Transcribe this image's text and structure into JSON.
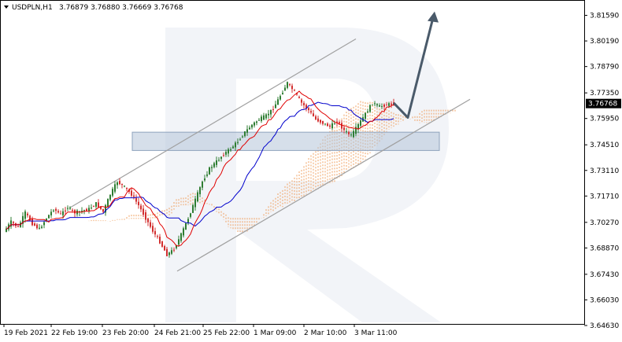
{
  "header": {
    "symbol": "USDPLN,H1",
    "ohlc": "3.76879 3.76880 3.76669 3.76768"
  },
  "colors": {
    "bull": "#2e7d32",
    "bear": "#d32f2f",
    "tenkan": "#e00000",
    "kijun": "#0000cc",
    "cloud": "#f0a060",
    "channel": "#a0a0a0",
    "zone": "#b4c4d8",
    "arrow": "#4a5a6a",
    "price_label_bg": "#000000"
  },
  "chart_data": {
    "type": "candlestick",
    "ylim": [
      3.6463,
      3.823
    ],
    "y_ticks": [
      "3.81590",
      "3.80190",
      "3.78790",
      "3.77350",
      "3.75950",
      "3.74510",
      "3.73110",
      "3.71710",
      "3.70270",
      "3.68870",
      "3.67430",
      "3.66030",
      "3.64630"
    ],
    "x_ticks": [
      "19 Feb 2021",
      "22 Feb 19:00",
      "23 Feb 20:00",
      "24 Feb 21:00",
      "25 Feb 22:00",
      "1 Mar 09:00",
      "2 Mar 10:00",
      "3 Mar 11:00"
    ],
    "current_price": "3.76768",
    "price_path": [
      3.6975,
      3.703,
      3.7,
      3.708,
      3.702,
      3.699,
      3.705,
      3.71,
      3.707,
      3.711,
      3.708,
      3.709,
      3.71,
      3.713,
      3.7085,
      3.718,
      3.725,
      3.722,
      3.718,
      3.712,
      3.705,
      3.698,
      3.692,
      3.685,
      3.688,
      3.696,
      3.705,
      3.715,
      3.725,
      3.732,
      3.736,
      3.74,
      3.743,
      3.747,
      3.752,
      3.756,
      3.759,
      3.761,
      3.765,
      3.772,
      3.779,
      3.774,
      3.768,
      3.764,
      3.759,
      3.757,
      3.755,
      3.758,
      3.753,
      3.75,
      3.756,
      3.762,
      3.768,
      3.766,
      3.767,
      3.76768
    ],
    "channel_upper": [
      [
        3.711,
        3.717
      ],
      [
        3.803,
        3.803
      ]
    ],
    "channel_lower": [
      [
        3.676,
        3.68
      ],
      [
        3.751,
        3.77
      ]
    ],
    "zone": [
      3.742,
      3.752
    ],
    "forecast_arrow": [
      3.768,
      3.76,
      3.818
    ]
  }
}
